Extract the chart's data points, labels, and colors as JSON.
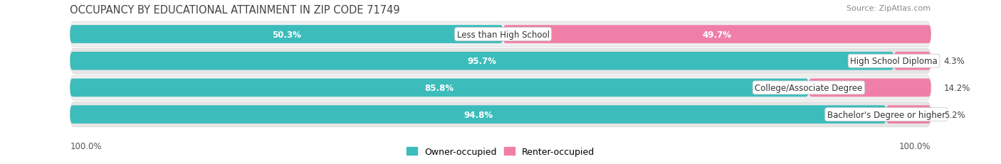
{
  "title": "OCCUPANCY BY EDUCATIONAL ATTAINMENT IN ZIP CODE 71749",
  "source": "Source: ZipAtlas.com",
  "categories": [
    "Less than High School",
    "High School Diploma",
    "College/Associate Degree",
    "Bachelor's Degree or higher"
  ],
  "owner_pct": [
    50.3,
    95.7,
    85.8,
    94.8
  ],
  "renter_pct": [
    49.7,
    4.3,
    14.2,
    5.2
  ],
  "owner_color": "#3DBCBC",
  "renter_color": "#F07FA8",
  "row_bg_colors": [
    "#EFEFEF",
    "#E5E5E5",
    "#EFEFEF",
    "#E5E5E5"
  ],
  "row_border_color": "#D8D8D8",
  "label_fontsize": 8.5,
  "pct_fontsize": 8.5,
  "title_fontsize": 10.5,
  "source_fontsize": 8,
  "legend_fontsize": 9,
  "axis_fontsize": 8.5,
  "figure_bg_color": "#FFFFFF",
  "left_axis_label": "100.0%",
  "right_axis_label": "100.0%"
}
